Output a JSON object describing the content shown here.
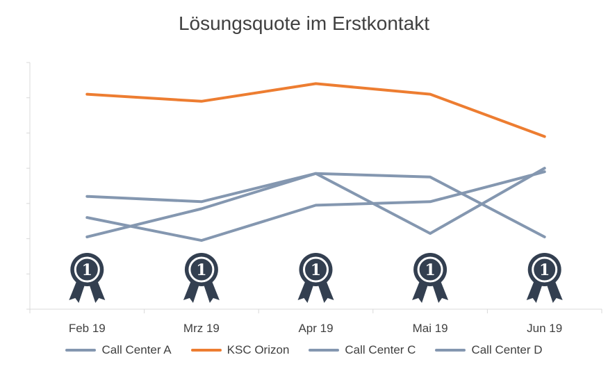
{
  "chart_data": {
    "type": "line",
    "title": "Lösungsquote im Erstkontakt",
    "xlabel": "",
    "ylabel": "",
    "categories": [
      "Feb 19",
      "Mrz 19",
      "Apr 19",
      "Mai 19",
      "Jun 19"
    ],
    "ylim": [
      0,
      7
    ],
    "y_tick_labels_shown": false,
    "grid": false,
    "legend_position": "bottom",
    "series": [
      {
        "name": "Call Center A",
        "color": "#8497B0",
        "values": [
          3.2,
          3.05,
          3.85,
          3.75,
          2.05
        ]
      },
      {
        "name": "KSC Orizon",
        "color": "#ED7D31",
        "values": [
          6.1,
          5.9,
          6.4,
          6.1,
          4.9
        ]
      },
      {
        "name": "Call Center C",
        "color": "#8497B0",
        "values": [
          2.6,
          1.95,
          2.95,
          3.05,
          3.9
        ]
      },
      {
        "name": "Call Center D",
        "color": "#8497B0",
        "values": [
          2.05,
          2.85,
          3.85,
          2.15,
          4.0
        ]
      }
    ],
    "annotations": {
      "award_icon": "first-place-rosette-icon",
      "award_label": "1",
      "award_color": "#333F50",
      "award_categories": [
        "Feb 19",
        "Mrz 19",
        "Apr 19",
        "Mai 19",
        "Jun 19"
      ]
    }
  }
}
